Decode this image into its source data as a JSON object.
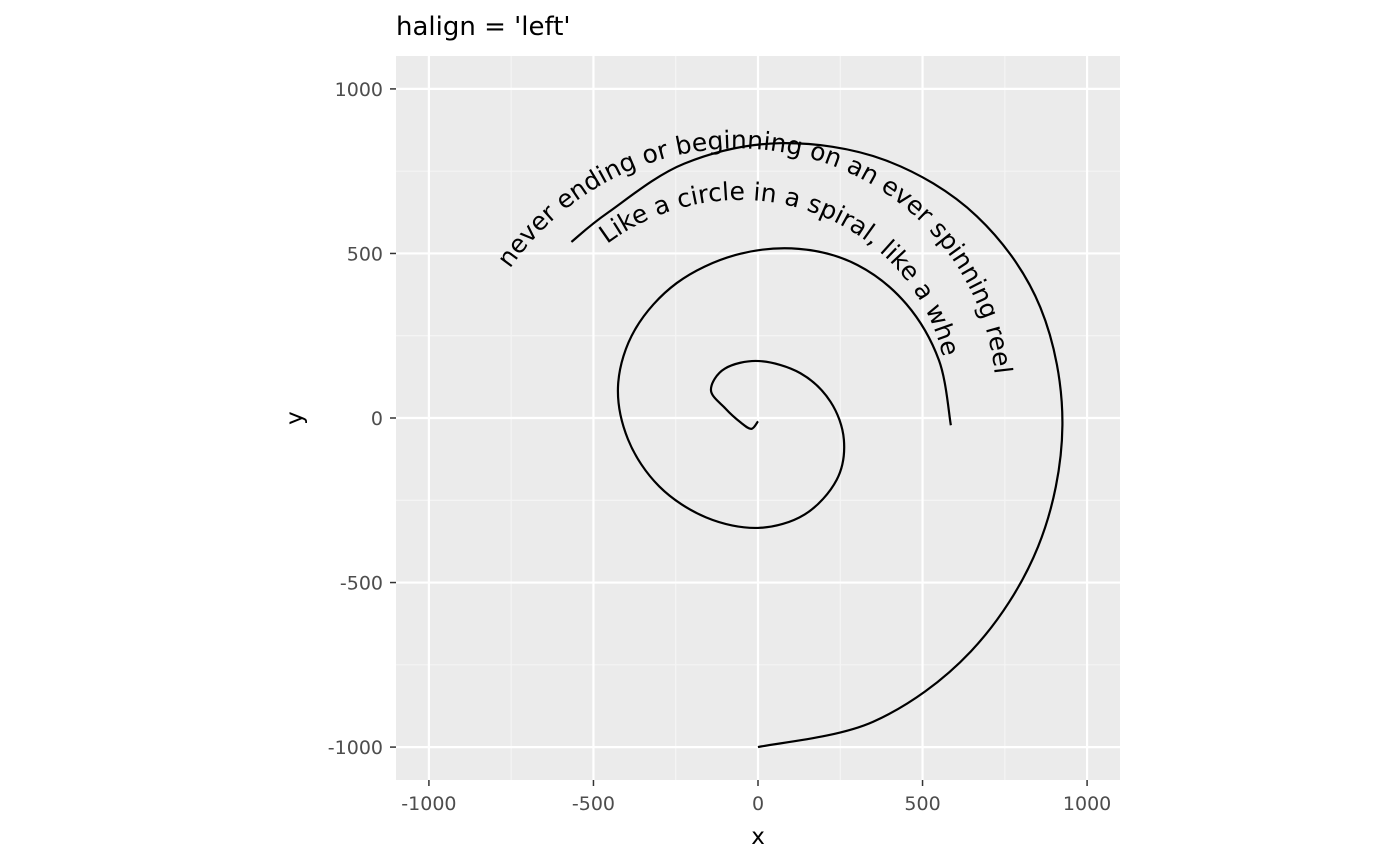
{
  "chart_data": {
    "type": "line",
    "title": "halign = 'left'",
    "xlabel": "x",
    "ylabel": "y",
    "xlim": [
      -1100,
      1100
    ],
    "ylim": [
      -1100,
      1100
    ],
    "x_ticks": [
      -1000,
      -500,
      0,
      500,
      1000
    ],
    "y_ticks": [
      -1000,
      -500,
      0,
      500,
      1000
    ],
    "x_tick_labels": [
      "-1000",
      "-500",
      "0",
      "500",
      "1000"
    ],
    "y_tick_labels": [
      "-1000",
      "-500",
      "0",
      "500",
      "1000"
    ],
    "grid": true,
    "series": [
      {
        "line_color": "#000000",
        "points": [
          [
            0,
            -1000
          ],
          [
            350,
            -923
          ],
          [
            647,
            -709
          ],
          [
            851,
            -391
          ],
          [
            925,
            -22
          ],
          [
            858,
            336
          ],
          [
            665,
            613
          ],
          [
            385,
            784
          ],
          [
            67,
            835
          ],
          [
            -224,
            773
          ],
          [
            -456,
            624
          ],
          [
            -567,
            535
          ],
          [
            586,
            -22
          ],
          [
            550,
            175
          ],
          [
            451,
            346
          ],
          [
            302,
            465
          ],
          [
            124,
            514
          ],
          [
            -69,
            495
          ],
          [
            -247,
            410
          ],
          [
            -373,
            270
          ],
          [
            -425,
            103
          ],
          [
            -395,
            -65
          ],
          [
            -300,
            -208
          ],
          [
            -158,
            -302
          ],
          [
            0,
            -334
          ],
          [
            142,
            -293
          ],
          [
            239,
            -188
          ],
          [
            261,
            -66
          ],
          [
            220,
            50
          ],
          [
            129,
            136
          ],
          [
            4,
            173
          ],
          [
            -101,
            150
          ],
          [
            -143,
            85
          ],
          [
            -99,
            29
          ],
          [
            -52,
            -14
          ],
          [
            -20,
            -33
          ],
          [
            0,
            -10
          ]
        ]
      }
    ],
    "annotation": {
      "text_color": "#000000",
      "text": "Like a circle in a spiral, like a wheel within a wheel, never ending or beginning on an ever spinning reel",
      "halign": "left",
      "lines": [
        "Like a circle in a spiral, like a wheel within a wheel,",
        "never ending or beginning on an ever spinning reel"
      ]
    },
    "colors": {
      "panel_background": "#ebebeb",
      "grid_major": "#ffffff",
      "grid_minor": "#f5f5f5",
      "tick_label": "#4d4d4d"
    }
  }
}
